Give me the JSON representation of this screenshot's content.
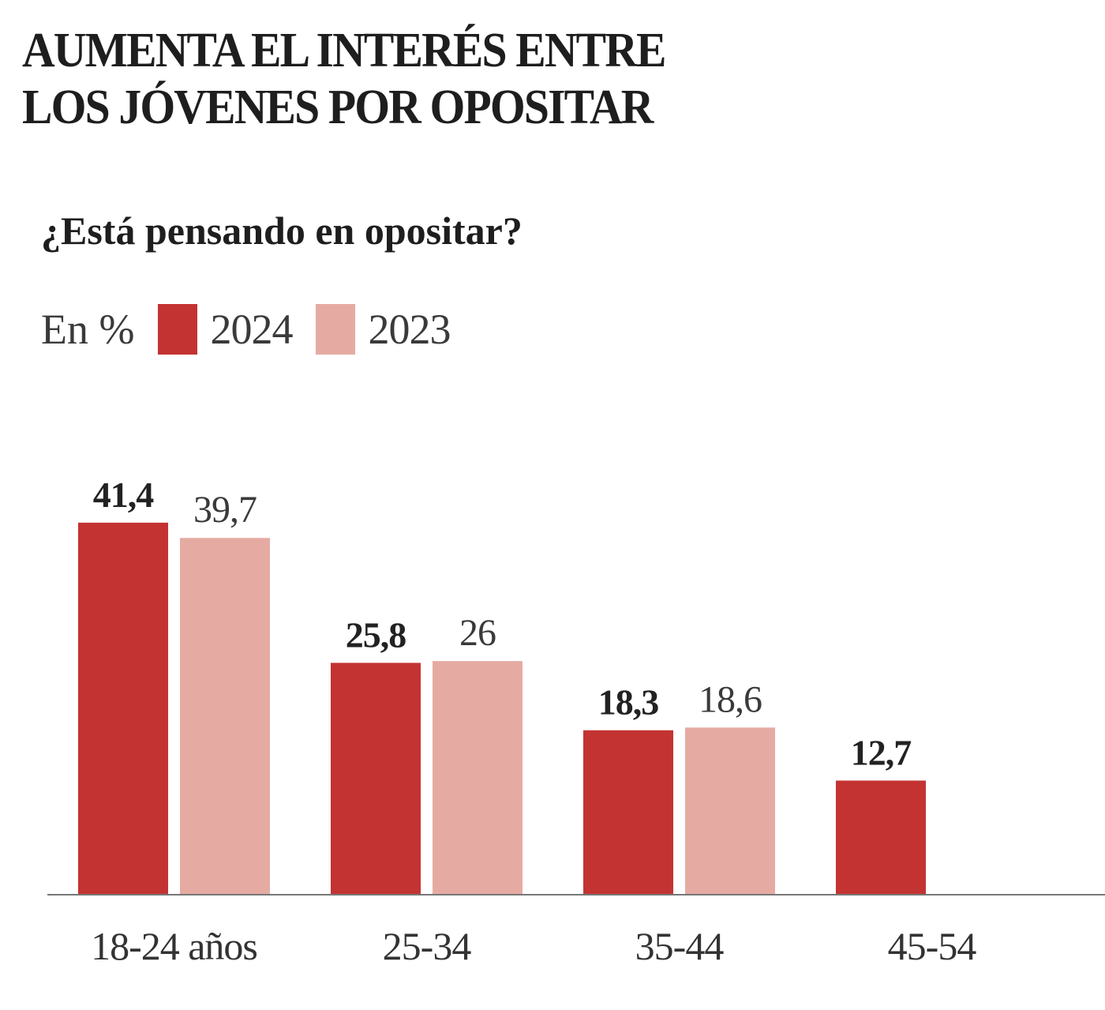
{
  "chart_data": {
    "type": "bar",
    "title": "AUMENTA EL INTERÉS ENTRE LOS JÓVENES POR OPOSITAR",
    "title_lines": [
      "AUMENTA EL INTERÉS ENTRE",
      "LOS JÓVENES POR OPOSITAR"
    ],
    "subtitle": "¿Está pensando en opositar?",
    "unit_label": "En %",
    "categories": [
      "18-24 años",
      "25-34",
      "35-44",
      "45-54"
    ],
    "series": [
      {
        "name": "2024",
        "color": "#c33332",
        "values": [
          41.4,
          25.8,
          18.3,
          12.7
        ],
        "labels": [
          "41,4",
          "25,8",
          "18,3",
          "12,7"
        ]
      },
      {
        "name": "2023",
        "color": "#e5aba3",
        "values": [
          39.7,
          26,
          18.6,
          null
        ],
        "labels": [
          "39,7",
          "26",
          "18,6",
          null
        ]
      }
    ],
    "ylim": [
      0,
      45
    ],
    "grid": false,
    "legend_position": "top-left"
  }
}
